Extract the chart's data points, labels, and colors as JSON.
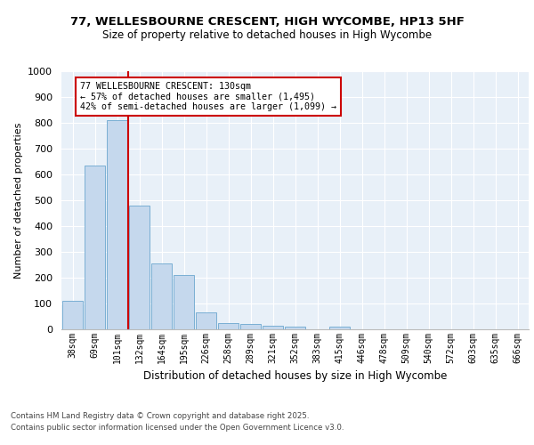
{
  "title_line1": "77, WELLESBOURNE CRESCENT, HIGH WYCOMBE, HP13 5HF",
  "title_line2": "Size of property relative to detached houses in High Wycombe",
  "xlabel": "Distribution of detached houses by size in High Wycombe",
  "ylabel": "Number of detached properties",
  "categories": [
    "38sqm",
    "69sqm",
    "101sqm",
    "132sqm",
    "164sqm",
    "195sqm",
    "226sqm",
    "258sqm",
    "289sqm",
    "321sqm",
    "352sqm",
    "383sqm",
    "415sqm",
    "446sqm",
    "478sqm",
    "509sqm",
    "540sqm",
    "572sqm",
    "603sqm",
    "635sqm",
    "666sqm"
  ],
  "values": [
    110,
    635,
    810,
    480,
    255,
    210,
    65,
    25,
    20,
    15,
    10,
    0,
    10,
    0,
    0,
    0,
    0,
    0,
    0,
    0,
    0
  ],
  "bar_color": "#c5d8ed",
  "bar_edge_color": "#7aafd4",
  "vline_color": "#cc0000",
  "annotation_text": "77 WELLESBOURNE CRESCENT: 130sqm\n← 57% of detached houses are smaller (1,495)\n42% of semi-detached houses are larger (1,099) →",
  "annotation_box_color": "#ffffff",
  "annotation_box_edge_color": "#cc0000",
  "ylim": [
    0,
    1000
  ],
  "yticks": [
    0,
    100,
    200,
    300,
    400,
    500,
    600,
    700,
    800,
    900,
    1000
  ],
  "background_color": "#e8f0f8",
  "footer_line1": "Contains HM Land Registry data © Crown copyright and database right 2025.",
  "footer_line2": "Contains public sector information licensed under the Open Government Licence v3.0."
}
